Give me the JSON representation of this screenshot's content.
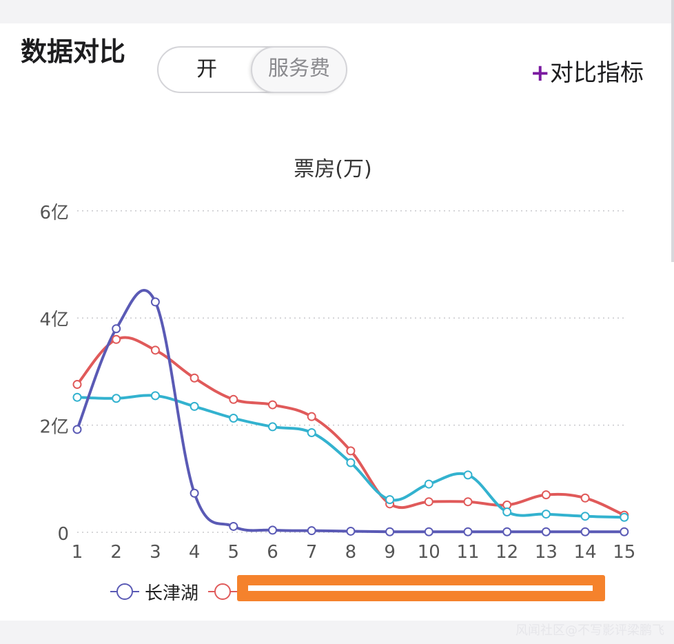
{
  "header": {
    "title": "数据对比",
    "toggle_on_label": "开",
    "toggle_off_label": "服务费",
    "compare_plus": "+",
    "compare_label": "对比指标"
  },
  "watermark": "风闻社区@不写影评梁鹏飞",
  "chart_data": {
    "type": "line",
    "title": "票房(万)",
    "categories": [
      "1",
      "2",
      "3",
      "4",
      "5",
      "6",
      "7",
      "8",
      "9",
      "10",
      "11",
      "12",
      "13",
      "14",
      "15"
    ],
    "y_ticks": [
      0,
      2,
      4,
      6
    ],
    "y_tick_labels": [
      "0",
      "2亿",
      "4亿",
      "6亿"
    ],
    "ylim": [
      0,
      6
    ],
    "unit": "亿",
    "grid": "horizontal dotted",
    "legend_position": "bottom",
    "series": [
      {
        "name": "长津湖",
        "color": "#5a5ab5",
        "values": [
          1.92,
          3.8,
          4.3,
          0.73,
          0.11,
          0.04,
          0.03,
          0.02,
          0.01,
          0.01,
          0.01,
          0.01,
          0.01,
          0.01,
          0.01
        ]
      },
      {
        "name": "",
        "color": "#e05a5a",
        "values": [
          2.76,
          3.6,
          3.4,
          2.88,
          2.48,
          2.38,
          2.16,
          1.52,
          0.53,
          0.57,
          0.57,
          0.51,
          0.7,
          0.64,
          0.32
        ]
      },
      {
        "name": "",
        "color": "#33b2cf",
        "values": [
          2.52,
          2.5,
          2.55,
          2.35,
          2.13,
          1.97,
          1.86,
          1.3,
          0.61,
          0.9,
          1.07,
          0.38,
          0.34,
          0.3,
          0.28
        ]
      }
    ]
  }
}
